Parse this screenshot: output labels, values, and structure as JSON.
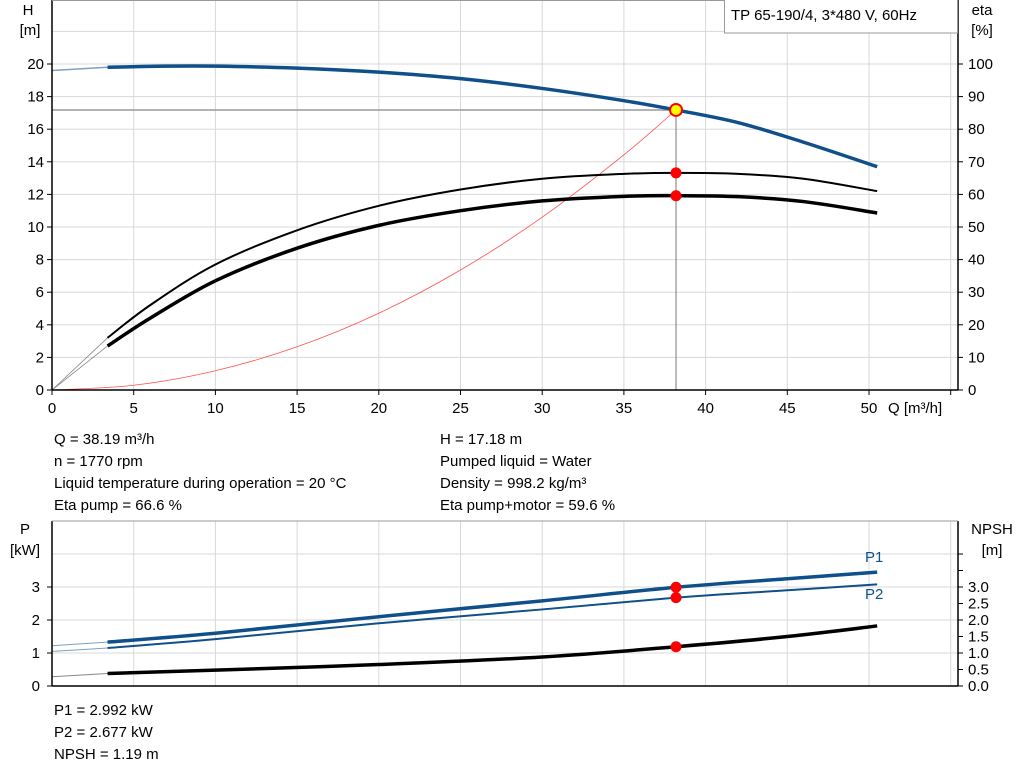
{
  "title_box": "TP 65-190/4, 3*480 V, 60Hz",
  "colors": {
    "head": "#0f4f8a",
    "efficiency": "#000000",
    "system_curve": "#ff5050",
    "duty_point": "#ff0000",
    "duty_marker_fill": "#ffff00",
    "power": "#0f4f8a",
    "npsh": "#000000",
    "grid": "#d8d8d8"
  },
  "chart_data": [
    {
      "type": "line",
      "xlabel": "Q [m³/h]",
      "ylabel_left": [
        "H",
        "[m]"
      ],
      "ylabel_right": [
        "eta",
        "[%]"
      ],
      "xlim": [
        0,
        55
      ],
      "ylim_left": [
        0,
        24
      ],
      "ylim_right": [
        0,
        120
      ],
      "x_ticks": [
        0,
        5,
        10,
        15,
        20,
        25,
        30,
        35,
        40,
        45,
        50
      ],
      "y_ticks_left": [
        0,
        2,
        4,
        6,
        8,
        10,
        12,
        14,
        16,
        18,
        20
      ],
      "y_ticks_right": [
        0,
        10,
        20,
        30,
        40,
        50,
        60,
        70,
        80,
        90,
        100
      ],
      "grid": true,
      "series": [
        {
          "id": "head",
          "axis": "left",
          "x": [
            3.4,
            7,
            10,
            15,
            20,
            25,
            30,
            35,
            38.19,
            42,
            46,
            50.5
          ],
          "y": [
            19.8,
            19.87,
            19.87,
            19.75,
            19.5,
            19.1,
            18.5,
            17.75,
            17.18,
            16.4,
            15.2,
            13.7
          ],
          "extension": {
            "x": [
              0,
              3.4
            ],
            "y": [
              19.6,
              19.8
            ]
          }
        },
        {
          "id": "eta-pump",
          "axis": "right",
          "x": [
            3.4,
            6,
            10,
            15,
            20,
            25,
            30,
            35,
            38.19,
            42,
            46,
            50.5
          ],
          "y": [
            16,
            26,
            38.5,
            49,
            56.5,
            61.5,
            64.8,
            66.3,
            66.6,
            66.3,
            64.8,
            61
          ]
        },
        {
          "id": "eta-pump-motor",
          "axis": "right",
          "x": [
            3.4,
            6,
            10,
            15,
            20,
            25,
            30,
            35,
            38.19,
            42,
            46,
            50.5
          ],
          "y": [
            13.5,
            22,
            33.5,
            43.5,
            50.5,
            55,
            58,
            59.4,
            59.6,
            59.3,
            57.8,
            54.3
          ]
        },
        {
          "id": "system-curve",
          "axis": "left",
          "x": [
            0,
            5,
            10,
            15,
            20,
            25,
            30,
            35,
            38.19
          ],
          "y": [
            0,
            0.29,
            1.18,
            2.65,
            4.71,
            7.36,
            10.6,
            14.43,
            17.18
          ]
        }
      ],
      "duty_point": {
        "q": 38.19,
        "h": 17.18,
        "eta_pump": 66.6,
        "eta_pump_motor": 59.6
      }
    },
    {
      "type": "line",
      "ylabel_left": [
        "P",
        "[kW]"
      ],
      "ylabel_right": [
        "NPSH",
        "[m]"
      ],
      "xlim": [
        0,
        55
      ],
      "ylim_left": [
        0,
        5
      ],
      "ylim_right": [
        0,
        5
      ],
      "y_ticks_left": [
        0,
        1,
        2,
        3
      ],
      "y_ticks_right": [
        "0.0",
        "0.5",
        "1.0",
        "1.5",
        "2.0",
        "2.5",
        "3.0"
      ],
      "grid": true,
      "series": [
        {
          "id": "P1",
          "name": "P1",
          "axis": "left",
          "x": [
            3.4,
            10,
            20,
            30,
            38.19,
            45,
            50.5
          ],
          "y": [
            1.33,
            1.6,
            2.1,
            2.58,
            2.992,
            3.25,
            3.45
          ],
          "extension": {
            "x": [
              0,
              3.4
            ],
            "y": [
              1.22,
              1.33
            ]
          }
        },
        {
          "id": "P2",
          "name": "P2",
          "axis": "left",
          "x": [
            3.4,
            10,
            20,
            30,
            38.19,
            45,
            50.5
          ],
          "y": [
            1.15,
            1.42,
            1.9,
            2.32,
            2.677,
            2.9,
            3.08
          ],
          "extension": {
            "x": [
              0,
              3.4
            ],
            "y": [
              1.05,
              1.15
            ]
          }
        },
        {
          "id": "NPSH",
          "axis": "right",
          "x": [
            3.4,
            10,
            20,
            30,
            38.19,
            45,
            50.5
          ],
          "y": [
            0.38,
            0.48,
            0.65,
            0.88,
            1.19,
            1.5,
            1.82
          ],
          "extension": {
            "x": [
              0,
              3.4
            ],
            "y": [
              0.28,
              0.38
            ]
          }
        }
      ],
      "duty_point": {
        "q": 38.19,
        "p1": 2.992,
        "p2": 2.677,
        "npsh": 1.19
      }
    }
  ],
  "info": {
    "left": [
      "Q = 38.19 m³/h",
      "n = 1770 rpm",
      "Liquid temperature during operation = 20 °C",
      "Eta pump = 66.6 %"
    ],
    "right": [
      "H = 17.18 m",
      "Pumped liquid = Water",
      "Density = 998.2 kg/m³",
      "Eta pump+motor = 59.6 %"
    ],
    "bottom": [
      "P1 = 2.992 kW",
      "P2 = 2.677 kW",
      "NPSH = 1.19 m"
    ]
  }
}
